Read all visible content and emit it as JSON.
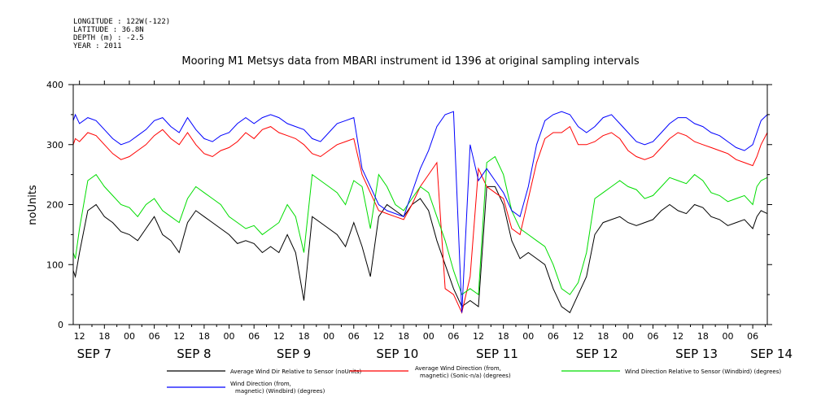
{
  "meta": {
    "longitude": "LONGITUDE : 122W(-122)",
    "latitude": "LATITUDE : 36.8N",
    "depth": "DEPTH (m) : -2.5",
    "year": "YEAR : 2011"
  },
  "chart_data": {
    "type": "line",
    "title": "Mooring M1 Metsys data from MBARI instrument id 1396 at original sampling intervals",
    "xlabel": "",
    "ylabel": "noUnits",
    "ylim": [
      0,
      400
    ],
    "y_ticks": [
      0,
      100,
      200,
      300,
      400
    ],
    "xlim": [
      10.5,
      177.5
    ],
    "x_tick_labels": [
      {
        "x": 12,
        "label": "12"
      },
      {
        "x": 18,
        "label": "18"
      },
      {
        "x": 24,
        "label": "00"
      },
      {
        "x": 30,
        "label": "06"
      },
      {
        "x": 36,
        "label": "12"
      },
      {
        "x": 42,
        "label": "18"
      },
      {
        "x": 48,
        "label": "00"
      },
      {
        "x": 54,
        "label": "06"
      },
      {
        "x": 60,
        "label": "12"
      },
      {
        "x": 66,
        "label": "18"
      },
      {
        "x": 72,
        "label": "00"
      },
      {
        "x": 78,
        "label": "06"
      },
      {
        "x": 84,
        "label": "12"
      },
      {
        "x": 90,
        "label": "18"
      },
      {
        "x": 96,
        "label": "00"
      },
      {
        "x": 102,
        "label": "06"
      },
      {
        "x": 108,
        "label": "12"
      },
      {
        "x": 114,
        "label": "18"
      },
      {
        "x": 120,
        "label": "00"
      },
      {
        "x": 126,
        "label": "06"
      },
      {
        "x": 132,
        "label": "12"
      },
      {
        "x": 138,
        "label": "18"
      },
      {
        "x": 144,
        "label": "00"
      },
      {
        "x": 150,
        "label": "06"
      },
      {
        "x": 156,
        "label": "12"
      },
      {
        "x": 162,
        "label": "18"
      },
      {
        "x": 168,
        "label": "00"
      },
      {
        "x": 174,
        "label": "06"
      }
    ],
    "day_labels": [
      {
        "x": 12,
        "label": "SEP 7"
      },
      {
        "x": 36,
        "label": "SEP 8"
      },
      {
        "x": 60,
        "label": "SEP 9"
      },
      {
        "x": 84,
        "label": "SEP 10"
      },
      {
        "x": 108,
        "label": "SEP 11"
      },
      {
        "x": 132,
        "label": "SEP 12"
      },
      {
        "x": 156,
        "label": "SEP 13"
      },
      {
        "x": 174,
        "label": "SEP 14"
      }
    ],
    "series": [
      {
        "name": "Average Wind Dir Relative to Sensor (noUnits)",
        "color": "#000000",
        "x": [
          10.5,
          11,
          12,
          14,
          16,
          18,
          20,
          22,
          24,
          26,
          28,
          30,
          32,
          34,
          36,
          38,
          40,
          42,
          44,
          46,
          48,
          50,
          52,
          54,
          56,
          58,
          60,
          62,
          64,
          66,
          68,
          70,
          72,
          74,
          76,
          78,
          80,
          82,
          84,
          86,
          88,
          90,
          92,
          94,
          96,
          98,
          100,
          102,
          104,
          106,
          108,
          110,
          112,
          114,
          116,
          118,
          120,
          122,
          124,
          126,
          128,
          130,
          132,
          134,
          136,
          138,
          140,
          142,
          144,
          146,
          148,
          150,
          152,
          154,
          156,
          158,
          160,
          162,
          164,
          166,
          168,
          170,
          172,
          174,
          175,
          176,
          177.5
        ],
        "y": [
          90,
          80,
          120,
          190,
          200,
          180,
          170,
          155,
          150,
          140,
          160,
          180,
          150,
          140,
          120,
          170,
          190,
          180,
          170,
          160,
          150,
          135,
          140,
          135,
          120,
          130,
          120,
          150,
          120,
          40,
          180,
          170,
          160,
          150,
          130,
          170,
          130,
          80,
          180,
          200,
          190,
          180,
          200,
          210,
          190,
          140,
          100,
          60,
          30,
          40,
          30,
          230,
          230,
          200,
          140,
          110,
          120,
          110,
          100,
          60,
          30,
          20,
          50,
          80,
          150,
          170,
          175,
          180,
          170,
          165,
          170,
          175,
          190,
          200,
          190,
          185,
          200,
          195,
          180,
          175,
          165,
          170,
          175,
          160,
          180,
          190,
          185
        ]
      },
      {
        "name": "Average Wind Direction (from, magnetic) (Sonic-n/a) (degrees)",
        "color": "#ff0000",
        "x": [
          10.5,
          11,
          12,
          14,
          16,
          18,
          20,
          22,
          24,
          26,
          28,
          30,
          32,
          34,
          36,
          38,
          40,
          42,
          44,
          46,
          48,
          50,
          52,
          54,
          56,
          58,
          60,
          62,
          64,
          66,
          68,
          70,
          72,
          74,
          76,
          78,
          80,
          82,
          84,
          86,
          88,
          90,
          92,
          94,
          96,
          98,
          100,
          102,
          104,
          106,
          108,
          110,
          112,
          114,
          116,
          118,
          120,
          122,
          124,
          126,
          128,
          130,
          132,
          134,
          136,
          138,
          140,
          142,
          144,
          146,
          148,
          150,
          152,
          154,
          156,
          158,
          160,
          162,
          164,
          166,
          168,
          170,
          172,
          174,
          175,
          176,
          177.5
        ],
        "y": [
          300,
          310,
          305,
          320,
          315,
          300,
          285,
          275,
          280,
          290,
          300,
          315,
          325,
          310,
          300,
          320,
          300,
          285,
          280,
          290,
          295,
          305,
          320,
          310,
          325,
          330,
          320,
          315,
          310,
          300,
          285,
          280,
          290,
          300,
          305,
          310,
          250,
          220,
          190,
          185,
          180,
          175,
          200,
          230,
          250,
          270,
          60,
          50,
          20,
          80,
          260,
          230,
          220,
          210,
          160,
          150,
          210,
          270,
          310,
          320,
          320,
          330,
          300,
          300,
          305,
          315,
          320,
          310,
          290,
          280,
          275,
          280,
          295,
          310,
          320,
          315,
          305,
          300,
          295,
          290,
          285,
          275,
          270,
          265,
          280,
          300,
          320
        ]
      },
      {
        "name": "Wind Direction Relative to Sensor (Windbird) (degrees)",
        "color": "#00dd00",
        "x": [
          10.5,
          11,
          12,
          14,
          16,
          18,
          20,
          22,
          24,
          26,
          28,
          30,
          32,
          34,
          36,
          38,
          40,
          42,
          44,
          46,
          48,
          50,
          52,
          54,
          56,
          58,
          60,
          62,
          64,
          66,
          68,
          70,
          72,
          74,
          76,
          78,
          80,
          82,
          84,
          86,
          88,
          90,
          92,
          94,
          96,
          98,
          100,
          102,
          104,
          106,
          108,
          110,
          112,
          114,
          116,
          118,
          120,
          122,
          124,
          126,
          128,
          130,
          132,
          134,
          136,
          138,
          140,
          142,
          144,
          146,
          148,
          150,
          152,
          154,
          156,
          158,
          160,
          162,
          164,
          166,
          168,
          170,
          172,
          174,
          175,
          176,
          177.5
        ],
        "y": [
          120,
          110,
          160,
          240,
          250,
          230,
          215,
          200,
          195,
          180,
          200,
          210,
          190,
          180,
          170,
          210,
          230,
          220,
          210,
          200,
          180,
          170,
          160,
          165,
          150,
          160,
          170,
          200,
          180,
          120,
          250,
          240,
          230,
          220,
          200,
          240,
          230,
          160,
          250,
          230,
          200,
          190,
          210,
          230,
          220,
          180,
          140,
          90,
          50,
          60,
          50,
          270,
          280,
          250,
          190,
          160,
          150,
          140,
          130,
          100,
          60,
          50,
          70,
          120,
          210,
          220,
          230,
          240,
          230,
          225,
          210,
          215,
          230,
          245,
          240,
          235,
          250,
          240,
          220,
          215,
          205,
          210,
          215,
          200,
          230,
          240,
          245
        ]
      },
      {
        "name": "Wind Direction (from, magnetic) (Windbird) (degrees)",
        "color": "#0000ff",
        "x": [
          10.5,
          11,
          12,
          14,
          16,
          18,
          20,
          22,
          24,
          26,
          28,
          30,
          32,
          34,
          36,
          38,
          40,
          42,
          44,
          46,
          48,
          50,
          52,
          54,
          56,
          58,
          60,
          62,
          64,
          66,
          68,
          70,
          72,
          74,
          76,
          78,
          80,
          82,
          84,
          86,
          88,
          90,
          92,
          94,
          96,
          98,
          100,
          102,
          104,
          106,
          108,
          110,
          112,
          114,
          116,
          118,
          120,
          122,
          124,
          126,
          128,
          130,
          132,
          134,
          136,
          138,
          140,
          142,
          144,
          146,
          148,
          150,
          152,
          154,
          156,
          158,
          160,
          162,
          164,
          166,
          168,
          170,
          172,
          174,
          175,
          176,
          177.5
        ],
        "y": [
          340,
          350,
          335,
          345,
          340,
          325,
          310,
          300,
          305,
          315,
          325,
          340,
          345,
          330,
          320,
          345,
          325,
          310,
          305,
          315,
          320,
          335,
          345,
          335,
          345,
          350,
          345,
          335,
          330,
          325,
          310,
          305,
          320,
          335,
          340,
          345,
          260,
          230,
          200,
          190,
          185,
          180,
          220,
          260,
          290,
          330,
          350,
          355,
          20,
          300,
          240,
          260,
          240,
          220,
          190,
          180,
          230,
          300,
          340,
          350,
          355,
          350,
          330,
          320,
          330,
          345,
          350,
          335,
          320,
          305,
          300,
          305,
          320,
          335,
          345,
          345,
          335,
          330,
          320,
          315,
          305,
          295,
          290,
          300,
          320,
          340,
          350
        ]
      }
    ],
    "legend": [
      {
        "label": "Average Wind Dir Relative to Sensor (noUnits)",
        "color": "#000000"
      },
      {
        "label": "Average Wind Direction (from, magnetic) (Sonic-n/a) (degrees)",
        "color": "#ff0000"
      },
      {
        "label": "Wind Direction Relative to Sensor (Windbird) (degrees)",
        "color": "#00dd00"
      },
      {
        "label": "Wind Direction (from, magnetic) (Windbird) (degrees)",
        "color": "#0000ff"
      }
    ],
    "legend_placement": "bottom",
    "grid": false
  }
}
